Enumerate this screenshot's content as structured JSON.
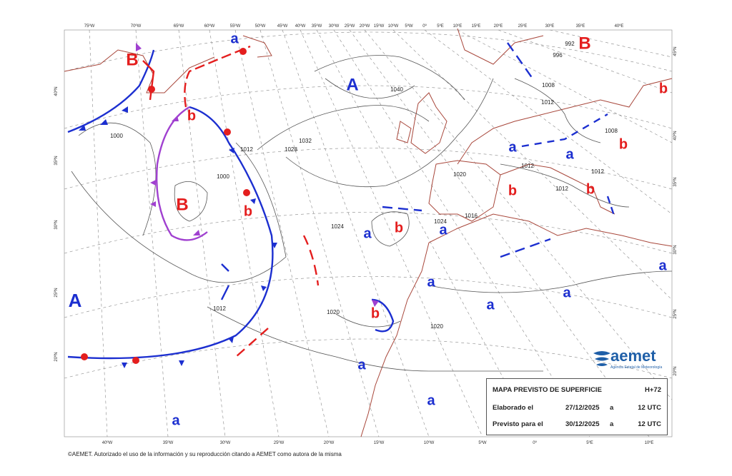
{
  "map": {
    "top_longitudes": [
      "75ºW",
      "70ºW",
      "65ºW",
      "60ºW",
      "55ºW",
      "50ºW",
      "45ºW",
      "40ºW",
      "35ºW",
      "30ºW",
      "25ºW",
      "20ºW",
      "15ºW",
      "10ºW",
      "5ºW",
      "0º",
      "5ºE",
      "10ºE",
      "15ºE",
      "20ºE",
      "25ºE",
      "30ºE",
      "35ºE",
      "40ºE"
    ],
    "bottom_longitudes": [
      "40ºW",
      "35ºW",
      "30ºW",
      "25ºW",
      "20ºW",
      "15ºW",
      "10ºW",
      "5ºW",
      "0º",
      "5ºE",
      "10ºE"
    ],
    "left_latitudes": [
      "40ºN",
      "35ºN",
      "30ºN",
      "25ºN",
      "20ºN"
    ],
    "right_latitudes": [
      "45ºN",
      "40ºN",
      "35ºN",
      "30ºN",
      "25ºN",
      "20ºN"
    ],
    "pressure_centers": [
      {
        "label": "B",
        "color": "#e41e1e"
      },
      {
        "label": "b",
        "color": "#e41e1e"
      },
      {
        "label": "B",
        "color": "#e41e1e"
      },
      {
        "label": "b",
        "color": "#e41e1e"
      },
      {
        "label": "A",
        "color": "#1c2fd0"
      },
      {
        "label": "a",
        "color": "#1c2fd0"
      },
      {
        "label": "B",
        "color": "#e41e1e"
      },
      {
        "label": "b",
        "color": "#e41e1e"
      },
      {
        "label": "b",
        "color": "#e41e1e"
      },
      {
        "label": "a",
        "color": "#1c2fd0"
      },
      {
        "label": "a",
        "color": "#1c2fd0"
      },
      {
        "label": "b",
        "color": "#e41e1e"
      },
      {
        "label": "b",
        "color": "#e41e1e"
      },
      {
        "label": "a",
        "color": "#1c2fd0"
      },
      {
        "label": "b",
        "color": "#e41e1e"
      },
      {
        "label": "a",
        "color": "#1c2fd0"
      },
      {
        "label": "a",
        "color": "#1c2fd0"
      },
      {
        "label": "a",
        "color": "#1c2fd0"
      },
      {
        "label": "a",
        "color": "#1c2fd0"
      },
      {
        "label": "a",
        "color": "#1c2fd0"
      },
      {
        "label": "A",
        "color": "#1c2fd0"
      },
      {
        "label": "b",
        "color": "#e41e1e"
      },
      {
        "label": "a",
        "color": "#1c2fd0"
      },
      {
        "label": "a",
        "color": "#1c2fd0"
      },
      {
        "label": "a",
        "color": "#1c2fd0"
      }
    ],
    "isobar_labels": [
      "1000",
      "1012",
      "1028",
      "1032",
      "1040",
      "1020",
      "1012",
      "1012",
      "1012",
      "1008",
      "1012",
      "996",
      "1024",
      "1024",
      "1016",
      "1020",
      "1020",
      "1012",
      "1008",
      "992",
      "1000"
    ]
  },
  "info_box": {
    "title": "MAPA PREVISTO DE SUPERFICIE",
    "step": "H+72",
    "rows": [
      [
        "Elaborado el",
        "27/12/2025",
        "a",
        "12 UTC"
      ],
      [
        "Previsto para el",
        "30/12/2025",
        "a",
        "12 UTC"
      ]
    ]
  },
  "logo": {
    "name": "aemet",
    "subtitle": "Agencia Estatal de Meteorología"
  },
  "copyright": "©AEMET. Autorizado el uso de la información y su reproducción citando a AEMET como autora de la misma"
}
